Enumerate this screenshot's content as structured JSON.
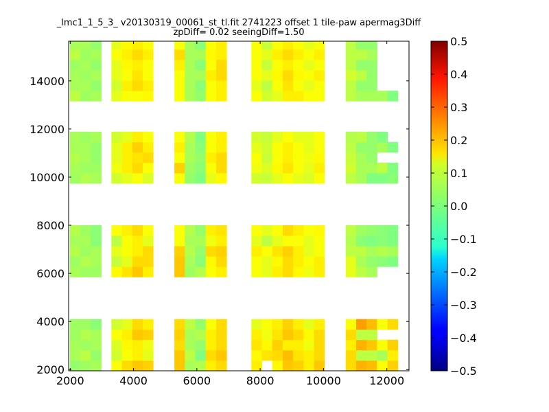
{
  "chart_data": {
    "type": "heatmap",
    "title_line1": "_lmc1_1_5_3_ v20130319_00061_st_tl.fit 2741223 offset 1 tile-paw apermag3Diff",
    "title_line2": "zpDiff= 0.02 seeingDiff=1.50",
    "xlim": [
      1950,
      12700
    ],
    "ylim": [
      1950,
      15650
    ],
    "xticks": [
      2000,
      4000,
      6000,
      8000,
      10000,
      12000
    ],
    "yticks": [
      2000,
      4000,
      6000,
      8000,
      10000,
      12000,
      14000
    ],
    "colorbar": {
      "colormap": "jet",
      "min": -0.5,
      "max": 0.5,
      "ticks": [
        "0.5",
        "0.4",
        "0.3",
        "0.2",
        "0.1",
        "0.0",
        "−0.1",
        "−0.2",
        "−0.3",
        "−0.4",
        "−0.5"
      ]
    },
    "grid": false,
    "cell_size": [
      330,
      430
    ],
    "column_x": [
      1990,
      2320,
      2650,
      3300,
      3630,
      3960,
      4290,
      4960,
      5290,
      5620,
      5950,
      6280,
      6610,
      7720,
      8050,
      8380,
      8710,
      9040,
      9370,
      9700,
      10700,
      11030,
      11360,
      11690,
      12020
    ],
    "row_y": [
      1950,
      2380,
      2810,
      3240,
      3670,
      5850,
      6280,
      6710,
      7140,
      7570,
      9740,
      10170,
      10600,
      11030,
      11460,
      13160,
      13590,
      14020,
      14450,
      14880,
      15310
    ],
    "cells": [
      [
        0.02,
        0.03,
        0.04,
        0.12,
        0.16,
        0.18,
        0.17,
        null,
        0.18,
        0.04,
        0.05,
        0.14,
        0.16,
        0.14,
        null,
        0.13,
        0.18,
        0.17,
        0.14,
        0.18,
        0.16,
        0.2,
        0.19,
        0.12,
        0.17
      ],
      [
        0.04,
        0.06,
        0.02,
        0.08,
        0.12,
        0.14,
        0.1,
        null,
        0.18,
        0.06,
        0.0,
        0.16,
        0.18,
        0.13,
        0.15,
        0.16,
        0.19,
        0.15,
        0.14,
        0.16,
        0.16,
        0.06,
        0.06,
        0.04,
        0.14
      ],
      [
        0.04,
        0.03,
        0.04,
        0.09,
        0.13,
        0.14,
        0.11,
        null,
        0.16,
        0.04,
        0.02,
        0.14,
        0.16,
        0.15,
        0.13,
        0.17,
        0.14,
        0.14,
        0.11,
        0.16,
        0.14,
        0.2,
        0.18,
        0.12,
        0.17
      ],
      [
        0.03,
        0.05,
        0.04,
        0.12,
        0.14,
        0.18,
        0.17,
        null,
        0.17,
        0.04,
        0.05,
        0.14,
        0.16,
        0.14,
        0.11,
        0.15,
        0.18,
        0.16,
        0.13,
        0.16,
        0.16,
        0.06,
        0.06,
        null,
        null
      ],
      [
        0.03,
        0.03,
        0.01,
        0.08,
        0.1,
        0.16,
        0.14,
        null,
        0.16,
        0.06,
        0.02,
        0.12,
        0.16,
        0.1,
        0.12,
        0.14,
        0.17,
        0.14,
        0.1,
        0.14,
        0.12,
        0.22,
        0.19,
        0.12,
        0.16
      ],
      [
        0.04,
        0.03,
        0.03,
        0.13,
        0.15,
        0.18,
        0.14,
        null,
        0.18,
        0.03,
        0.05,
        0.12,
        0.14,
        0.12,
        0.1,
        0.14,
        0.16,
        0.13,
        0.11,
        0.14,
        0.1,
        0.06,
        0.04,
        null,
        null
      ],
      [
        0.03,
        0.05,
        0.04,
        0.07,
        0.1,
        0.16,
        0.16,
        null,
        0.18,
        0.04,
        0.01,
        0.13,
        0.16,
        0.12,
        0.1,
        0.13,
        0.16,
        0.14,
        0.12,
        0.14,
        0.1,
        0.04,
        0.02,
        0.01,
        0.0
      ],
      [
        0.05,
        0.03,
        0.04,
        0.1,
        0.12,
        0.14,
        0.16,
        null,
        0.17,
        0.05,
        0.02,
        0.16,
        0.17,
        0.14,
        0.12,
        0.15,
        0.17,
        0.14,
        0.1,
        0.12,
        0.06,
        0.06,
        0.04,
        0.05,
        0.04
      ],
      [
        0.04,
        0.04,
        0.01,
        0.06,
        0.12,
        0.14,
        0.1,
        null,
        0.12,
        0.04,
        0.04,
        0.11,
        0.14,
        0.1,
        0.06,
        0.1,
        0.12,
        0.12,
        0.1,
        0.12,
        0.05,
        0.01,
        0.0,
        0.01,
        0.0
      ],
      [
        0.05,
        0.03,
        0.01,
        0.12,
        0.14,
        0.16,
        0.12,
        null,
        0.12,
        0.05,
        0.02,
        0.14,
        0.15,
        0.12,
        0.1,
        0.12,
        0.16,
        0.14,
        0.12,
        0.13,
        0.06,
        0.03,
        0.02,
        0.01,
        0.0
      ],
      [
        0.03,
        0.05,
        0.04,
        0.08,
        0.1,
        0.12,
        0.09,
        null,
        0.12,
        0.02,
        0.0,
        0.1,
        0.13,
        0.08,
        0.07,
        0.1,
        0.12,
        0.1,
        0.09,
        0.12,
        0.06,
        0.04,
        0.0,
        0.0,
        0.01
      ],
      [
        0.04,
        0.03,
        0.03,
        0.11,
        0.14,
        0.16,
        0.12,
        null,
        0.17,
        0.03,
        0.01,
        0.12,
        0.16,
        0.11,
        0.09,
        0.13,
        0.15,
        0.12,
        0.1,
        0.14,
        0.08,
        0.04,
        0.04,
        0.06,
        0.0
      ],
      [
        0.05,
        0.04,
        0.02,
        0.1,
        0.14,
        0.15,
        0.16,
        null,
        0.12,
        0.04,
        0.02,
        0.14,
        0.16,
        0.12,
        0.07,
        0.12,
        0.14,
        0.12,
        0.11,
        0.13,
        0.07,
        0.04,
        0.02,
        null,
        null
      ],
      [
        0.04,
        0.04,
        0.02,
        0.1,
        0.14,
        0.17,
        0.14,
        null,
        0.14,
        0.04,
        0.01,
        0.12,
        0.14,
        0.1,
        0.08,
        0.12,
        0.14,
        0.12,
        0.1,
        0.12,
        0.06,
        0.02,
        0.02,
        0.04,
        0.0
      ],
      [
        0.04,
        0.03,
        0.04,
        0.08,
        0.1,
        0.14,
        0.12,
        null,
        0.12,
        0.05,
        0.0,
        0.12,
        0.14,
        0.08,
        0.07,
        0.1,
        0.12,
        0.1,
        0.1,
        0.12,
        0.05,
        0.06,
        0.02,
        0.0,
        null
      ],
      [
        0.06,
        0.03,
        0.04,
        0.1,
        0.12,
        0.12,
        0.13,
        null,
        0.12,
        0.04,
        0.02,
        0.12,
        0.14,
        0.12,
        0.08,
        0.1,
        0.14,
        0.14,
        0.12,
        0.12,
        0.06,
        0.04,
        0.04,
        0.04,
        0.0
      ],
      [
        0.04,
        0.04,
        0.02,
        0.08,
        0.14,
        0.16,
        0.14,
        null,
        0.12,
        0.04,
        0.01,
        0.12,
        0.14,
        0.1,
        0.06,
        0.12,
        0.15,
        0.12,
        0.1,
        0.12,
        0.06,
        0.02,
        0.02,
        null,
        null
      ],
      [
        0.04,
        0.03,
        0.04,
        0.1,
        0.12,
        0.15,
        0.12,
        null,
        0.12,
        0.04,
        0.04,
        0.14,
        0.16,
        0.12,
        0.1,
        0.13,
        0.16,
        0.13,
        0.12,
        0.14,
        0.08,
        0.06,
        0.02,
        null,
        null
      ],
      [
        0.03,
        0.04,
        0.02,
        0.1,
        0.13,
        0.14,
        0.12,
        null,
        0.14,
        0.04,
        0.01,
        0.12,
        0.16,
        0.12,
        0.07,
        0.12,
        0.14,
        0.12,
        0.1,
        0.12,
        0.06,
        0.02,
        0.02,
        null,
        null
      ],
      [
        0.06,
        0.03,
        0.04,
        0.12,
        0.14,
        0.16,
        0.14,
        null,
        0.16,
        0.04,
        0.04,
        0.13,
        0.14,
        0.12,
        0.1,
        0.14,
        0.16,
        0.14,
        0.12,
        0.14,
        0.06,
        0.06,
        0.04,
        null,
        null
      ],
      [
        0.04,
        0.04,
        0.02,
        0.1,
        0.13,
        0.14,
        0.12,
        null,
        0.12,
        0.04,
        0.01,
        0.12,
        0.14,
        0.12,
        0.07,
        0.12,
        0.14,
        0.12,
        0.1,
        0.12,
        0.06,
        0.02,
        0.02,
        null,
        null
      ]
    ]
  }
}
